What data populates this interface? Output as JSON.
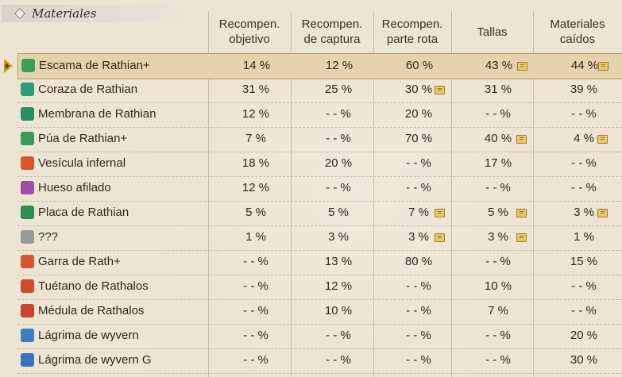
{
  "section": {
    "title": "Materiales"
  },
  "headers": {
    "objetivo": "Recompen.\nobjetivo",
    "captura": "Recompen.\nde captura",
    "parte_rota": "Recompen.\nparte rota",
    "tallas": "Tallas",
    "caidos": "Materiales\ncaídos"
  },
  "colors": {
    "background": "#ece5d3",
    "selected_row": "#e6d3ae",
    "note_icon": "#e8c766"
  },
  "rows": [
    {
      "name": "Escama de Rathian+",
      "icon": "green-scale-icon",
      "color": "#3aa05a",
      "values": [
        "14 %",
        "12 %",
        "60 %",
        "43 %",
        "44 %"
      ],
      "notes": [
        false,
        false,
        false,
        true,
        true
      ],
      "selected": true
    },
    {
      "name": "Coraza de Rathian",
      "icon": "green-carapace-icon",
      "color": "#2f9a78",
      "values": [
        "31 %",
        "25 %",
        "30 %",
        "31 %",
        "39 %"
      ],
      "notes": [
        false,
        false,
        true,
        false,
        false
      ],
      "selected": false
    },
    {
      "name": "Membrana de Rathian",
      "icon": "green-wing-icon",
      "color": "#2a8f63",
      "values": [
        "12 %",
        "- - %",
        "20 %",
        "- - %",
        "- - %"
      ],
      "notes": [
        false,
        false,
        false,
        false,
        false
      ],
      "selected": false
    },
    {
      "name": "Púa de Rathian+",
      "icon": "green-spike-icon",
      "color": "#3a9c54",
      "values": [
        "7 %",
        "- - %",
        "70 %",
        "40 %",
        "4 %"
      ],
      "notes": [
        false,
        false,
        false,
        true,
        true
      ],
      "selected": false
    },
    {
      "name": "Vesícula infernal",
      "icon": "red-sac-icon",
      "color": "#d9552b",
      "values": [
        "18 %",
        "20 %",
        "- - %",
        "17 %",
        "- - %"
      ],
      "notes": [
        false,
        false,
        false,
        false,
        false
      ],
      "selected": false
    },
    {
      "name": "Hueso afilado",
      "icon": "purple-bone-icon",
      "color": "#9b4fa5",
      "values": [
        "12 %",
        "- - %",
        "- - %",
        "- - %",
        "- - %"
      ],
      "notes": [
        false,
        false,
        false,
        false,
        false
      ],
      "selected": false
    },
    {
      "name": "Placa de Rathian",
      "icon": "green-plate-icon",
      "color": "#2e8e4e",
      "values": [
        "5 %",
        "5 %",
        "7 %",
        "5 %",
        "3 %"
      ],
      "notes": [
        false,
        false,
        true,
        true,
        true
      ],
      "selected": false
    },
    {
      "name": "???",
      "icon": "unknown-item-icon",
      "color": "#9a9a9a",
      "values": [
        "1 %",
        "3 %",
        "3 %",
        "3 %",
        "1 %"
      ],
      "notes": [
        false,
        false,
        true,
        true,
        false
      ],
      "selected": false
    },
    {
      "name": "Garra de Rath+",
      "icon": "red-claw-icon",
      "color": "#d7552e",
      "values": [
        "- - %",
        "13 %",
        "80 %",
        "- - %",
        "15 %"
      ],
      "notes": [
        false,
        false,
        false,
        false,
        false
      ],
      "selected": false
    },
    {
      "name": "Tuétano de Rathalos",
      "icon": "red-marrow-icon",
      "color": "#cf4b2a",
      "values": [
        "- - %",
        "12 %",
        "- - %",
        "10 %",
        "- - %"
      ],
      "notes": [
        false,
        false,
        false,
        false,
        false
      ],
      "selected": false
    },
    {
      "name": "Médula de Rathalos",
      "icon": "red-medulla-icon",
      "color": "#c8442a",
      "values": [
        "- - %",
        "10 %",
        "- - %",
        "7 %",
        "- - %"
      ],
      "notes": [
        false,
        false,
        false,
        false,
        false
      ],
      "selected": false
    },
    {
      "name": "Lágrima de wyvern",
      "icon": "blue-tear-icon",
      "color": "#3b7fc4",
      "values": [
        "- - %",
        "- - %",
        "- - %",
        "- - %",
        "20 %"
      ],
      "notes": [
        false,
        false,
        false,
        false,
        false
      ],
      "selected": false
    },
    {
      "name": "Lágrima de wyvern G",
      "icon": "blue-tear-g-icon",
      "color": "#3576bd",
      "values": [
        "- - %",
        "- - %",
        "- - %",
        "- - %",
        "30 %"
      ],
      "notes": [
        false,
        false,
        false,
        false,
        false
      ],
      "selected": false
    }
  ]
}
